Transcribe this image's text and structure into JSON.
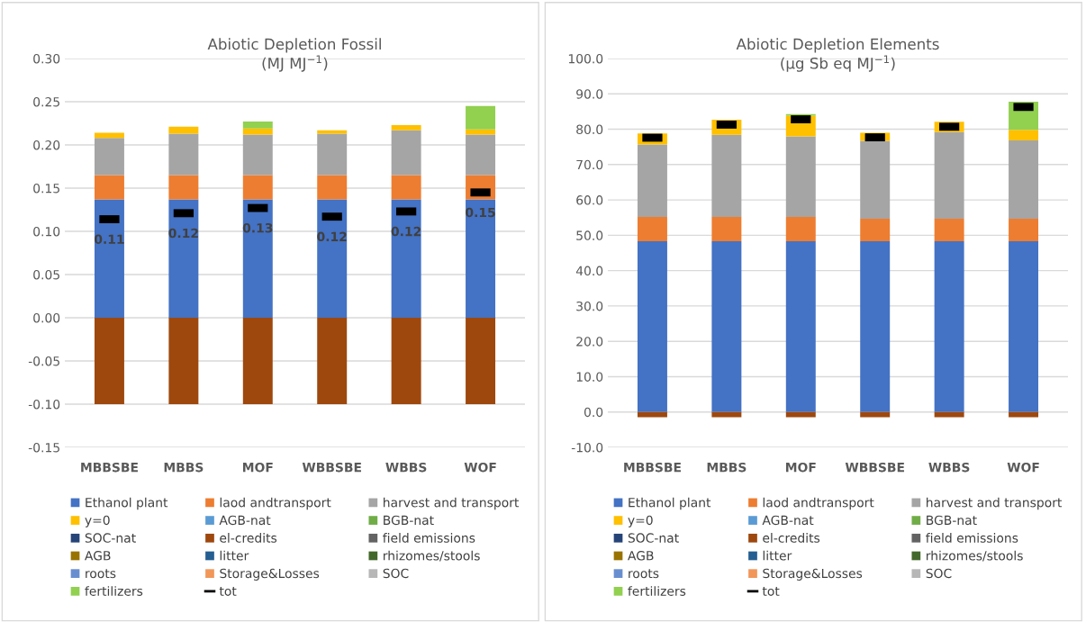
{
  "chart_data": [
    {
      "type": "bar",
      "stacked": true,
      "title": "Abiotic Depletion Fossil\n(MJ MJ$^{−1}$)",
      "categories": [
        "MBBSBE",
        "MBBS",
        "MOF",
        "WBBSBE",
        "WBBS",
        "WOF"
      ],
      "ylim": [
        -0.15,
        0.3
      ],
      "yticks": [
        {
          "value": -0.15,
          "label": "-0.15"
        },
        {
          "value": -0.1,
          "label": "-0.10"
        },
        {
          "value": -0.05,
          "label": "-0.05"
        },
        {
          "value": 0,
          "label": "0.00"
        },
        {
          "value": 0.05,
          "label": "0.05"
        },
        {
          "value": 0.1,
          "label": "0.10"
        },
        {
          "value": 0.15,
          "label": "0.15"
        },
        {
          "value": 0.2,
          "label": "0.20"
        },
        {
          "value": 0.25,
          "label": "0.25"
        },
        {
          "value": 0.3,
          "label": "0.30"
        }
      ],
      "grid": "y",
      "legend": "bottom",
      "series": [
        {
          "name": "Ethanol plant",
          "color": "#4472c4",
          "values": [
            0.137,
            0.137,
            0.137,
            0.137,
            0.137,
            0.137
          ]
        },
        {
          "name": "laod andtransport",
          "color": "#ed7d31",
          "values": [
            0.028,
            0.028,
            0.028,
            0.028,
            0.028,
            0.028
          ]
        },
        {
          "name": "harvest and transport",
          "color": "#a5a5a5",
          "values": [
            0.043,
            0.048,
            0.047,
            0.048,
            0.052,
            0.047
          ]
        },
        {
          "name": "y=0",
          "color": "#ffc000",
          "values": [
            0.006,
            0.008,
            0.007,
            0.004,
            0.006,
            0.006
          ]
        },
        {
          "name": "AGB-nat",
          "color": "#5b9bd5",
          "values": [
            0,
            0,
            0,
            0,
            0,
            0
          ]
        },
        {
          "name": "BGB-nat",
          "color": "#70ad47",
          "values": [
            0,
            0,
            0,
            0,
            0,
            0
          ]
        },
        {
          "name": "SOC-nat",
          "color": "#264478",
          "values": [
            0,
            0,
            0,
            0,
            0,
            0
          ]
        },
        {
          "name": "el-credits",
          "color": "#9e480e",
          "values": [
            -0.1,
            -0.1,
            -0.1,
            -0.1,
            -0.1,
            -0.1
          ]
        },
        {
          "name": "field emissions",
          "color": "#636363",
          "values": [
            0,
            0,
            0,
            0,
            0,
            0
          ]
        },
        {
          "name": "AGB",
          "color": "#997300",
          "values": [
            0,
            0,
            0,
            0,
            0,
            0
          ]
        },
        {
          "name": "litter",
          "color": "#255e91",
          "values": [
            0,
            0,
            0,
            0,
            0,
            0
          ]
        },
        {
          "name": "rhizomes/stools",
          "color": "#43682b",
          "values": [
            0,
            0,
            0,
            0,
            0,
            0
          ]
        },
        {
          "name": "roots",
          "color": "#698ed0",
          "values": [
            0,
            0,
            0,
            0,
            0,
            0
          ]
        },
        {
          "name": "Storage&Losses",
          "color": "#f1975a",
          "values": [
            0,
            0,
            0,
            0,
            0,
            0
          ]
        },
        {
          "name": "SOC",
          "color": "#b7b7b7",
          "values": [
            0,
            0,
            0,
            0,
            0,
            0
          ]
        },
        {
          "name": "fertilizers",
          "color": "#92d050",
          "values": [
            0,
            0,
            0.008,
            0,
            0,
            0.027
          ]
        },
        {
          "name": "tot",
          "type": "scatter",
          "color": "#000000",
          "values": [
            0.114,
            0.121,
            0.127,
            0.117,
            0.123,
            0.145
          ],
          "value_labels": [
            "0.11",
            "0.12",
            "0.13",
            "0.12",
            "0.12",
            "0.15"
          ]
        }
      ]
    },
    {
      "type": "bar",
      "stacked": true,
      "title": "Abiotic Depletion Elements\n(µg Sb eq MJ$^{−1}$)",
      "categories": [
        "MBBSBE",
        "MBBS",
        "MOF",
        "WBBSBE",
        "WBBS",
        "WOF"
      ],
      "ylim": [
        -10,
        100
      ],
      "yticks": [
        {
          "value": -10,
          "label": "-10.0"
        },
        {
          "value": 0,
          "label": "0.0"
        },
        {
          "value": 10,
          "label": "10.0"
        },
        {
          "value": 20,
          "label": "20.0"
        },
        {
          "value": 30,
          "label": "30.0"
        },
        {
          "value": 40,
          "label": "40.0"
        },
        {
          "value": 50,
          "label": "50.0"
        },
        {
          "value": 60,
          "label": "60.0"
        },
        {
          "value": 70,
          "label": "70.0"
        },
        {
          "value": 80,
          "label": "80.0"
        },
        {
          "value": 90,
          "label": "90.0"
        },
        {
          "value": 100,
          "label": "100.0"
        }
      ],
      "grid": "y",
      "legend": "bottom",
      "series": [
        {
          "name": "Ethanol plant",
          "color": "#4472c4",
          "values": [
            48.3,
            48.3,
            48.3,
            48.3,
            48.3,
            48.3
          ]
        },
        {
          "name": "laod andtransport",
          "color": "#ed7d31",
          "values": [
            6.9,
            6.9,
            6.9,
            6.4,
            6.4,
            6.4
          ]
        },
        {
          "name": "harvest and transport",
          "color": "#a5a5a5",
          "values": [
            20.5,
            23.2,
            22.8,
            22.0,
            24.5,
            22.1
          ]
        },
        {
          "name": "y=0",
          "color": "#ffc000",
          "values": [
            3.1,
            4.3,
            5.8,
            2.3,
            2.9,
            3.0
          ]
        },
        {
          "name": "AGB-nat",
          "color": "#5b9bd5",
          "values": [
            0,
            0,
            0,
            0,
            0,
            0
          ]
        },
        {
          "name": "BGB-nat",
          "color": "#70ad47",
          "values": [
            0,
            0,
            0,
            0,
            0,
            0
          ]
        },
        {
          "name": "SOC-nat",
          "color": "#264478",
          "values": [
            0,
            0,
            0,
            0,
            0,
            0
          ]
        },
        {
          "name": "el-credits",
          "color": "#9e480e",
          "values": [
            -1.5,
            -1.5,
            -1.5,
            -1.5,
            -1.5,
            -1.5
          ]
        },
        {
          "name": "field emissions",
          "color": "#636363",
          "values": [
            0,
            0,
            0,
            0,
            0,
            0
          ]
        },
        {
          "name": "AGB",
          "color": "#997300",
          "values": [
            0,
            0,
            0,
            0,
            0,
            0
          ]
        },
        {
          "name": "litter",
          "color": "#255e91",
          "values": [
            0,
            0,
            0,
            0,
            0,
            0
          ]
        },
        {
          "name": "rhizomes/stools",
          "color": "#43682b",
          "values": [
            0,
            0,
            0,
            0,
            0,
            0
          ]
        },
        {
          "name": "roots",
          "color": "#698ed0",
          "values": [
            0,
            0,
            0,
            0,
            0,
            0
          ]
        },
        {
          "name": "Storage&Losses",
          "color": "#f1975a",
          "values": [
            0,
            0,
            0,
            0,
            0,
            0
          ]
        },
        {
          "name": "SOC",
          "color": "#b7b7b7",
          "values": [
            0,
            0,
            0,
            0,
            0,
            0
          ]
        },
        {
          "name": "fertilizers",
          "color": "#92d050",
          "values": [
            0,
            0,
            0.5,
            0,
            0,
            8.0
          ]
        },
        {
          "name": "tot",
          "type": "scatter",
          "color": "#000000",
          "values": [
            77.6,
            81.3,
            82.8,
            77.7,
            80.7,
            86.3
          ]
        }
      ]
    }
  ]
}
